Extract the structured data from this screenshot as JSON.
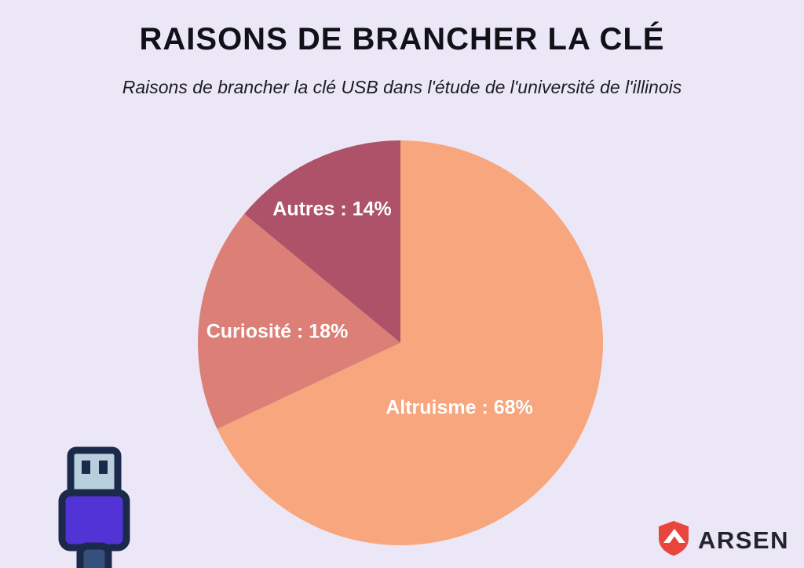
{
  "page": {
    "background": "#ece7f6",
    "title": "RAISONS DE BRANCHER LA CLÉ",
    "subtitle": "Raisons de brancher la clé USB dans l'étude de l'université de l'illinois"
  },
  "chart_data": {
    "type": "pie",
    "title": "Raisons de brancher la clé",
    "categories": [
      "Altruisme",
      "Curiosité",
      "Autres"
    ],
    "values": [
      68,
      18,
      14
    ],
    "unit": "%",
    "start_angle_deg": -90,
    "direction": "clockwise",
    "legend_position": "labels-on-slices",
    "slices": [
      {
        "label": "Altruisme",
        "value": 68,
        "display": "Altruisme : 68%",
        "color": "#f7a67e"
      },
      {
        "label": "Curiosité",
        "value": 18,
        "display": "Curiosité : 18%",
        "color": "#dc8077"
      },
      {
        "label": "Autres",
        "value": 14,
        "display": "Autres : 14%",
        "color": "#ad5268"
      }
    ]
  },
  "branding": {
    "logo_text": "ARSEN",
    "logo_color": "#e8453c",
    "icons": {
      "usb": "usb-plug-icon",
      "shield": "arsen-shield-icon"
    }
  }
}
